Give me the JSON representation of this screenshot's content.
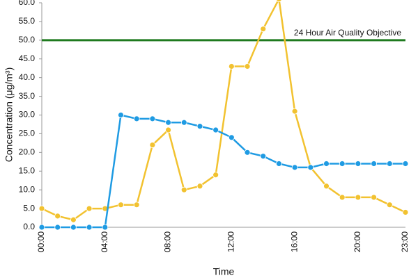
{
  "chart_data": {
    "type": "line",
    "y_label": "Concentration (μg/m³)",
    "x_label": "Time",
    "categories": [
      "00:00",
      null,
      null,
      null,
      "04:00",
      null,
      null,
      null,
      "08:00",
      null,
      null,
      null,
      "12:00",
      null,
      null,
      null,
      "16:00",
      null,
      null,
      null,
      "20:00",
      null,
      null,
      "23:00"
    ],
    "series": [
      {
        "color": "#f2c230",
        "values": [
          5,
          3,
          2,
          5,
          5,
          6,
          6,
          22,
          26,
          10,
          11,
          14,
          43,
          43,
          53,
          61,
          31,
          16,
          11,
          8,
          8,
          8,
          6,
          4
        ]
      },
      {
        "color": "#1f9be3",
        "values": [
          0,
          0,
          0,
          0,
          0,
          30,
          29,
          29,
          28,
          28,
          27,
          26,
          24,
          20,
          19,
          17,
          16,
          16,
          17,
          17,
          17,
          17,
          17,
          17
        ]
      }
    ],
    "threshold": {
      "value": 50,
      "label": "24 Hour Air Quality Objective",
      "color": "#1f7a1f"
    },
    "ylim": [
      0,
      60
    ],
    "yticks": [
      {
        "value": 0,
        "label": "0.0"
      },
      {
        "value": 5,
        "label": "5.0"
      },
      {
        "value": 10,
        "label": "10.0"
      },
      {
        "value": 15,
        "label": "15.0"
      },
      {
        "value": 20,
        "label": "20.0"
      },
      {
        "value": 25,
        "label": "25.0"
      },
      {
        "value": 30,
        "label": "30.0"
      },
      {
        "value": 35,
        "label": "35.0"
      },
      {
        "value": 40,
        "label": "40.0"
      },
      {
        "value": 45,
        "label": "45.0"
      },
      {
        "value": 50,
        "label": "50.0"
      },
      {
        "value": 55,
        "label": "55.0"
      },
      {
        "value": 60,
        "label": "60.0"
      }
    ],
    "grid": false
  }
}
